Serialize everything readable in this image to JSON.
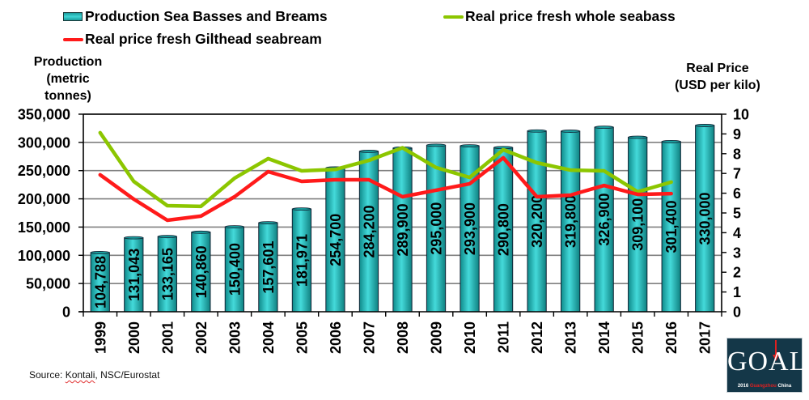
{
  "chart_data": {
    "type": "bar+line",
    "title": "",
    "categories": [
      "1999",
      "2000",
      "2001",
      "2002",
      "2003",
      "2004",
      "2005",
      "2006",
      "2007",
      "2008",
      "2009",
      "2010",
      "2011",
      "2012",
      "2013",
      "2014",
      "2015",
      "2016",
      "2017"
    ],
    "series": [
      {
        "name": "Production Sea Basses and Breams",
        "type": "bar",
        "axis": "left",
        "color": "#2bbcbc",
        "values": [
          104788,
          131043,
          133165,
          140860,
          150400,
          157601,
          181971,
          254700,
          284200,
          289900,
          295000,
          293900,
          290800,
          320200,
          319800,
          326900,
          309100,
          301400,
          330000
        ],
        "labels": [
          "104,788",
          "131,043",
          "133,165",
          "140,860",
          "150,400",
          "157,601",
          "181,971",
          "254,700",
          "284,200",
          "289,900",
          "295,000",
          "293,900",
          "290,800",
          "320,200",
          "319,800",
          "326,900",
          "309,100",
          "301,400",
          "330,000"
        ]
      },
      {
        "name": "Real price fresh whole seabass",
        "type": "line",
        "axis": "right",
        "color": "#8cc600",
        "values": [
          9.06,
          6.6,
          5.37,
          5.33,
          6.76,
          7.75,
          7.13,
          7.2,
          7.66,
          8.3,
          7.3,
          6.8,
          8.2,
          7.54,
          7.17,
          7.13,
          6.07,
          6.56,
          null
        ]
      },
      {
        "name": "Real price fresh Gilthead seabream",
        "type": "line",
        "axis": "right",
        "color": "#ff1a1a",
        "values": [
          6.93,
          5.7,
          4.63,
          4.84,
          5.82,
          7.09,
          6.6,
          6.68,
          6.68,
          5.82,
          6.15,
          6.48,
          7.79,
          5.82,
          5.9,
          6.39,
          5.94,
          5.98,
          null
        ]
      }
    ],
    "ylabel_left": [
      "Production",
      "(metric tonnes)"
    ],
    "ylabel_right": [
      "Real Price",
      "(USD per kilo)"
    ],
    "ylim_left": [
      0,
      350000
    ],
    "ylim_right": [
      0,
      10
    ],
    "yticks_left": [
      "0",
      "50,000",
      "100,000",
      "150,000",
      "200,000",
      "250,000",
      "300,000",
      "350,000"
    ],
    "yticks_right": [
      "0",
      "1",
      "2",
      "3",
      "4",
      "5",
      "6",
      "7",
      "8",
      "9",
      "10"
    ],
    "grid": true,
    "legend_position": "top"
  },
  "source": {
    "prefix": "Source: ",
    "squiggle_word": "Kontali",
    "suffix": ", NSC/Eurostat"
  },
  "logo": {
    "word": "GOAL",
    "year": "2016",
    "city": "Guangzhou",
    "country": "China"
  }
}
